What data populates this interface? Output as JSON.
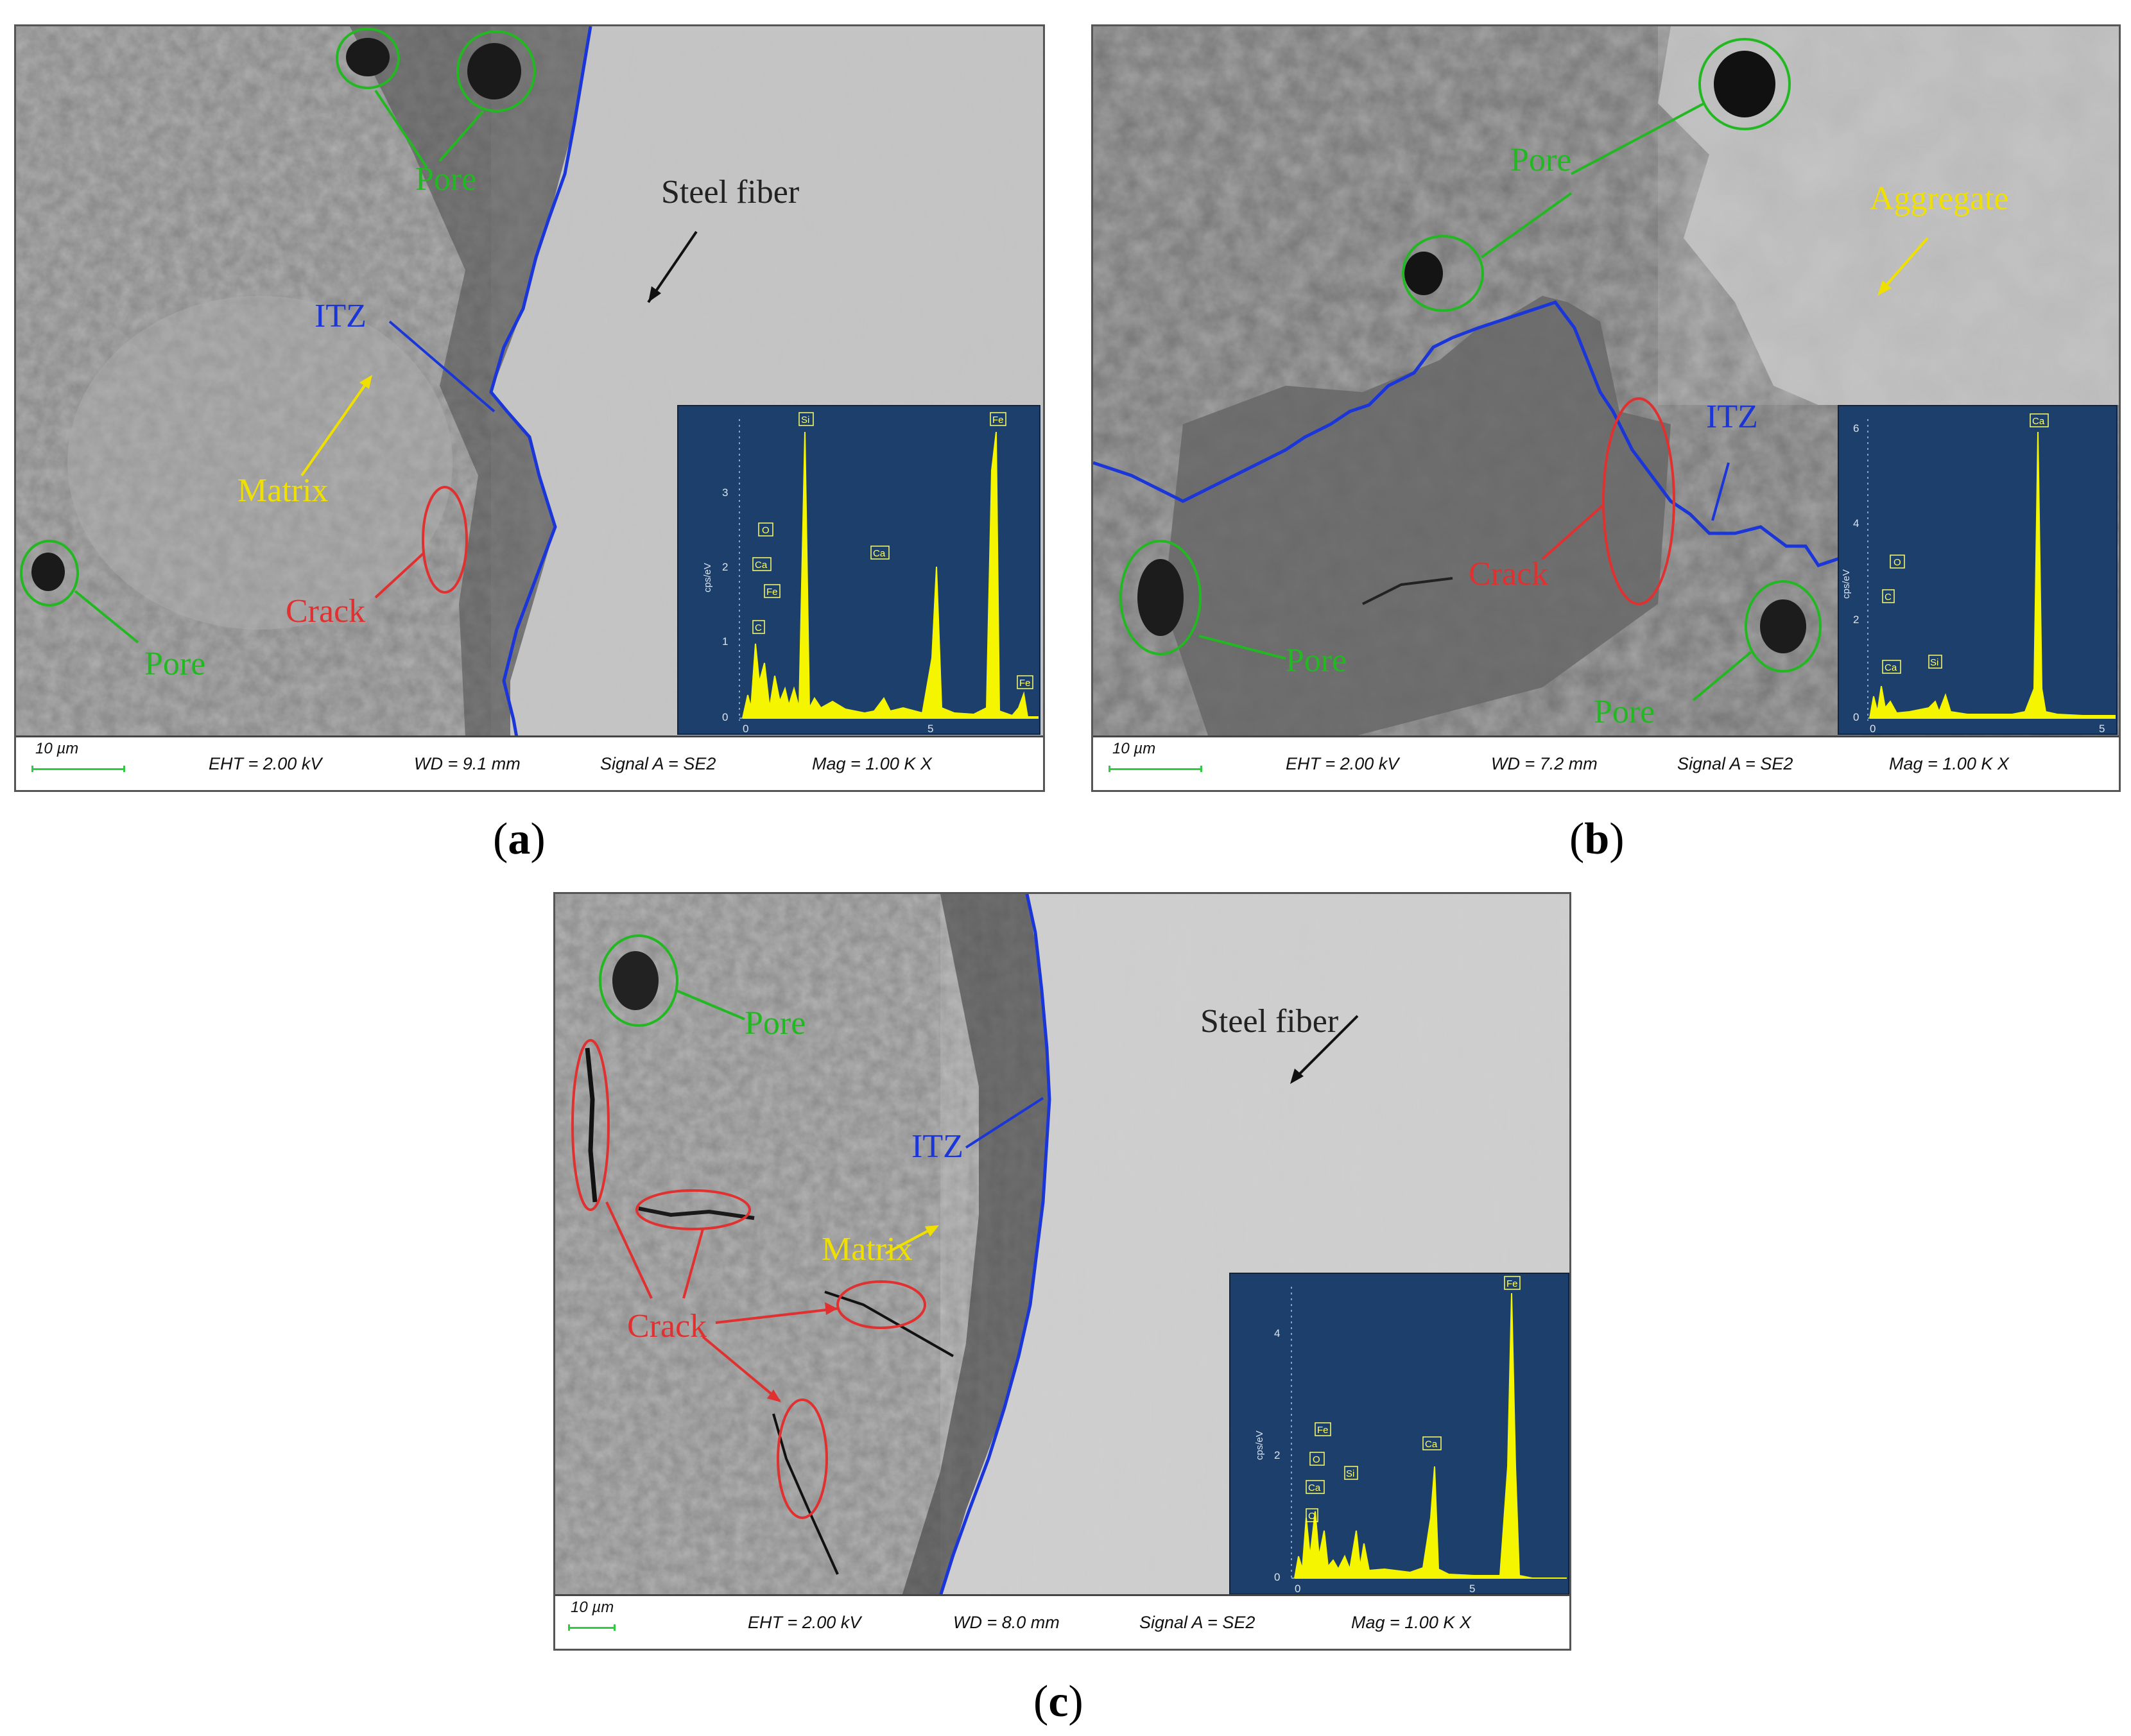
{
  "panels": {
    "a": {
      "caption": "a",
      "labels": {
        "pore_top": "Pore",
        "pore_left": "Pore",
        "steel": "Steel fiber",
        "itz": "ITZ",
        "matrix": "Matrix",
        "crack": "Crack"
      },
      "info": {
        "scale": "10 µm",
        "eht": "EHT =  2.00 kV",
        "wd": "WD =  9.1 mm",
        "signal": "Signal A = SE2",
        "mag": "Mag =    1.00 K X"
      },
      "eds": {
        "ylabel": "cps/eV",
        "yticks": [
          "0",
          "1",
          "2",
          "3"
        ],
        "xticks": [
          "0",
          "5"
        ],
        "peaks": [
          "Si",
          "Fe",
          "O",
          "Ca",
          "Fe",
          "C",
          "Ca",
          "Fe"
        ]
      }
    },
    "b": {
      "caption": "b",
      "labels": {
        "pore_top": "Pore",
        "aggregate": "Aggregate",
        "itz": "ITZ",
        "crack": "Crack",
        "pore_left": "Pore",
        "pore_bottom": "Pore"
      },
      "info": {
        "scale": "10 µm",
        "eht": "EHT =  2.00 kV",
        "wd": "WD =  7.2 mm",
        "signal": "Signal A = SE2",
        "mag": "Mag =    1.00 K X"
      },
      "eds": {
        "ylabel": "cps/eV",
        "yticks": [
          "0",
          "2",
          "4",
          "6"
        ],
        "xticks": [
          "0",
          "5"
        ],
        "peaks": [
          "Ca",
          "O",
          "C",
          "Ca",
          "Si"
        ]
      }
    },
    "c": {
      "caption": "c",
      "labels": {
        "pore": "Pore",
        "steel": "Steel fiber",
        "itz": "ITZ",
        "matrix": "Matrix",
        "crack": "Crack"
      },
      "info": {
        "scale": "10 µm",
        "eht": "EHT =  2.00 kV",
        "wd": "WD =  8.0 mm",
        "signal": "Signal A = SE2",
        "mag": "Mag =    1.00 K X"
      },
      "eds": {
        "ylabel": "cps/eV",
        "yticks": [
          "0",
          "2",
          "4"
        ],
        "xticks": [
          "0",
          "5"
        ],
        "peaks": [
          "Fe",
          "Fe",
          "O",
          "Ca",
          "C",
          "Si",
          "Ca"
        ]
      }
    }
  },
  "colors": {
    "pore": "#22b822",
    "crack": "#e03030",
    "itz": "#1a35d8",
    "matrix": "#f0e000",
    "steel": "#111111",
    "eds_bg": "#1d3f6b",
    "eds_peak": "#f5f500"
  }
}
